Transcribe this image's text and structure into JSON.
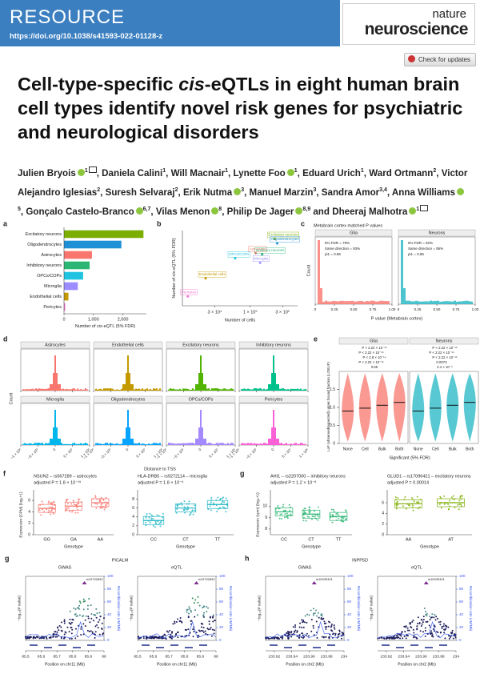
{
  "header": {
    "section": "RESOURCE",
    "doi": "https://doi.org/10.1038/s41593-022-01128-z",
    "journal": [
      "nature",
      "neuroscience"
    ],
    "updates": "Check for updates"
  },
  "title": [
    "Cell-type-specific ",
    "cis",
    "-eQTLs in eight human brain cell types identify novel risk genes for psychiatric and neurological disorders"
  ],
  "authors": [
    {
      "name": "Julien Bryois",
      "sup": "1",
      "orcid": true,
      "corresponding": true
    },
    {
      "name": "Daniela Calini",
      "sup": "1",
      "orcid": false,
      "corresponding": false
    },
    {
      "name": "Will Macnair",
      "sup": "1",
      "orcid": false,
      "corresponding": false
    },
    {
      "name": "Lynette Foo",
      "sup": "1",
      "orcid": true,
      "corresponding": false
    },
    {
      "name": "Eduard Urich",
      "sup": "1",
      "orcid": false,
      "corresponding": false
    },
    {
      "name": "Ward Ortmann",
      "sup": "2",
      "orcid": false,
      "corresponding": false
    },
    {
      "name": "Victor Alejandro Iglesias",
      "sup": "2",
      "orcid": false,
      "corresponding": false
    },
    {
      "name": "Suresh Selvaraj",
      "sup": "2",
      "orcid": false,
      "corresponding": false
    },
    {
      "name": "Erik Nutma",
      "sup": "3",
      "orcid": true,
      "corresponding": false
    },
    {
      "name": "Manuel Marzin",
      "sup": "3",
      "orcid": false,
      "corresponding": false
    },
    {
      "name": "Sandra Amor",
      "sup": "3,4",
      "orcid": false,
      "corresponding": false
    },
    {
      "name": "Anna Williams",
      "sup": "5",
      "orcid": true,
      "corresponding": false
    },
    {
      "name": "Gonçalo Castelo-Branco",
      "sup": "6,7",
      "orcid": true,
      "corresponding": false
    },
    {
      "name": "Vilas Menon",
      "sup": "8",
      "orcid": true,
      "corresponding": false
    },
    {
      "name": "Philip De Jager",
      "sup": "8,9",
      "orcid": true,
      "corresponding": false
    },
    {
      "name": "Dheeraj Malhotra",
      "sup": "1",
      "orcid": true,
      "corresponding": true
    }
  ],
  "figure": {
    "a": {
      "label": "a",
      "type": "bar",
      "categories": [
        "Excitatory neurons",
        "Oligodendrocytes",
        "Astrocytes",
        "Inhibitory neurons",
        "OPCs/COPs",
        "Microglia",
        "Endothelial cells",
        "Pericytes"
      ],
      "values": [
        2700,
        1950,
        950,
        870,
        650,
        470,
        150,
        40
      ],
      "colors": [
        "#7cae00",
        "#1f8fd6",
        "#f8766d",
        "#2bb673",
        "#20c4e0",
        "#9b8cff",
        "#c49a00",
        "#f472d0"
      ],
      "xlim": [
        0,
        2800
      ],
      "xticks": [
        0,
        {
          "value": 1000,
          "label": "1,000"
        },
        {
          "value": 2000,
          "label": "2,000"
        }
      ],
      "xlabel": [
        "Number of ",
        "cis",
        "-eQTL (5% FDR)"
      ]
    },
    "b": {
      "label": "b",
      "type": "scatter",
      "names": [
        "Excitatory neurons",
        "Oligodendrocytes",
        "Astrocytes",
        "Inhibitory neurons",
        "OPCs/COPs",
        "Microglia",
        "Endothelial cells",
        "Pericytes"
      ],
      "x": [
        230000,
        250000,
        120000,
        150000,
        60000,
        140000,
        22000,
        12000
      ],
      "y": [
        2700,
        1950,
        950,
        870,
        650,
        470,
        150,
        40
      ],
      "colors": [
        "#7cae00",
        "#1f8fd6",
        "#f8766d",
        "#2bb673",
        "#20c4e0",
        "#9b8cff",
        "#c49a00",
        "#f472d0"
      ],
      "log": true,
      "xlim": [
        10000,
        500000
      ],
      "ylim": [
        20,
        5000
      ],
      "xticks": [
        {
          "value": 30000,
          "label": "3 × 10⁴"
        },
        {
          "value": 100000,
          "label": "1 × 10⁵"
        },
        {
          "value": 300000,
          "label": "3 × 10⁵"
        }
      ],
      "xlabel": "Number of cells",
      "ylabel": [
        "Number of ",
        "cis",
        "-eQTL (5% FDR)"
      ]
    },
    "c": {
      "label": "c",
      "title": "Metabrain cortex matched P values",
      "facets": [
        {
          "name": "Glia",
          "color": "#f8766d",
          "stats": [
            "5% FDR = 79%",
            "Same direction = 93%",
            "pi1 = 0.86"
          ]
        },
        {
          "name": "Neurons",
          "color": "#20b5c4",
          "stats": [
            "5% FDR = 82%",
            "Same direction = 95%",
            "pi1 = 0.86"
          ]
        }
      ],
      "xlim": [
        0,
        1
      ],
      "xticks": [
        0,
        0.25,
        {
          "value": 0.5,
          "label": "0.50"
        },
        0.75,
        {
          "value": 1,
          "label": "1.00"
        }
      ],
      "ylabel": "Count",
      "xlabel": "P value (Metabrain cortex)"
    },
    "d": {
      "label": "d",
      "panels": [
        {
          "name": "Astrocytes",
          "color": "#f8766d"
        },
        {
          "name": "Endothelial cells",
          "color": "#c49a00"
        },
        {
          "name": "Excitatory neurons",
          "color": "#53b400"
        },
        {
          "name": "Inhibitory neurons",
          "color": "#00c08b"
        },
        {
          "name": "Microglia",
          "color": "#00b6eb"
        },
        {
          "name": "Oligodendrocytes",
          "color": "#06a4ff"
        },
        {
          "name": "OPCs/COPs",
          "color": "#a58aff"
        },
        {
          "name": "Pericytes",
          "color": "#fb61d7"
        }
      ],
      "xlim": [
        -1000000,
        1000000
      ],
      "xticks": [
        {
          "value": -1000000,
          "label": "−1 × 10⁶"
        },
        {
          "value": -500000,
          "label": "−5 × 10⁵"
        },
        0,
        {
          "value": 500000,
          "label": "5 × 10⁵"
        },
        {
          "value": 1000000,
          "label": "1 × 10⁶"
        }
      ],
      "ylabel": "Count",
      "xlabel": "Distance to TSS"
    },
    "e": {
      "label": "e",
      "facets": [
        "Glia",
        "Neurons"
      ],
      "colors": [
        "#f8766d",
        "#20b5c4"
      ],
      "categories": [
        "None",
        "Cell",
        "Bulk",
        "Both"
      ],
      "pvals": [
        [
          "P < 2.22 × 10⁻¹⁶",
          "P < 2.22 × 10⁻¹⁶",
          "P < 2.8 × 10⁻¹⁴",
          "P < 2.22 × 10⁻¹⁶",
          "0.65"
        ],
        [
          "P < 2.22 × 10⁻¹⁶",
          "P < 2.22 × 10⁻¹⁶",
          "P < 2.22 × 10⁻¹⁶",
          "0.0073",
          "2.4 × 10⁻⁶"
        ]
      ],
      "ylim": [
        0,
        2
      ],
      "yticks": [
        0,
        0.5,
        {
          "value": 1,
          "label": "1.0"
        },
        1.5
      ],
      "ylabel": "LoF (observed/expected) upper bound fraction (LOEUF)",
      "xlabel": "Significant (5% FDR)"
    },
    "boxes": [
      {
        "label": "f",
        "gene": "NSUN2 – rs567289 – astrocytes",
        "p": "adjusted P = 1.8 × 10⁻¹⁹",
        "genotypes": [
          "GG",
          "GA",
          "AA"
        ],
        "medians": [
          4.6,
          5.0,
          5.6
        ],
        "color": "#f8766d",
        "ylim": [
          0,
          7
        ],
        "yticks": [
          0,
          2,
          4,
          6
        ],
        "ylabel": "Expression (CPM) (log₂+1)",
        "xlabel": "Genotype"
      },
      {
        "gene": "HLA-DRB5 – rs9272114 – microglia",
        "p": "adjusted P = 1.8 × 10⁻⁹",
        "genotypes": [
          "CC",
          "CT",
          "TT"
        ],
        "medians": [
          3.2,
          6.0,
          6.8
        ],
        "color": "#20b5c4",
        "ylim": [
          0,
          9
        ],
        "yticks": [
          0,
          2,
          4,
          6,
          8
        ],
        "xlabel": "Genotype"
      },
      {
        "label": "g",
        "gene": "AHI1 – rs2207000 – inhibitory neurons",
        "p": "adjusted P = 1.2 × 10⁻⁸",
        "genotypes": [
          "CC",
          "CT",
          "TT"
        ],
        "medians": [
          9.5,
          9.3,
          9.1
        ],
        "color": "#2bb673",
        "ylim": [
          7.5,
          11
        ],
        "yticks": [
          8,
          9,
          10
        ],
        "ylabel": "Expression (cpm) (log₂+1)",
        "xlabel": "Genotype"
      },
      {
        "gene": "GLUD1 – rs17096421 – excitatory neurons",
        "p": "adjusted P = 0.00014",
        "genotypes": [
          "AA",
          "AT"
        ],
        "medians": [
          5.8,
          6.0
        ],
        "color": "#7cae00",
        "ylim": [
          0,
          7.5
        ],
        "yticks": [
          0,
          2,
          4,
          6
        ],
        "xlabel": "Genotype"
      }
    ],
    "locus": [
      {
        "label": "g",
        "gene": "PICALM",
        "plots": [
          "GWAS",
          "eQTL"
        ],
        "lead": "rs10792832",
        "xlim": [
          85.5,
          86
        ],
        "xticks": [
          85.5,
          85.6,
          85.7,
          85.8,
          85.9,
          86
        ],
        "xlabel": "Position on chr11 (Mb)",
        "ylabel": "−log₁₀(P value)",
        "y2label": "Recombination rate (cM/Mb)",
        "y2lim": [
          0,
          100
        ],
        "y2ticks": [
          0,
          20,
          40,
          60,
          80,
          100
        ]
      },
      {
        "label": "h",
        "gene": "INPP5D",
        "plots": [
          "GWAS",
          "eQTL"
        ],
        "lead": "rs10933431",
        "xlim": [
          233.91,
          234
        ],
        "xticks": [
          233.92,
          233.94,
          233.96,
          233.98,
          234
        ],
        "xlabel": "Position on chr2 (Mb)",
        "ylabel": "−log₁₀(P value)",
        "y2label": "Recombination rate (cM/Mb)",
        "y2lim": [
          0,
          100
        ],
        "y2ticks": [
          0,
          20,
          40,
          60,
          80,
          100
        ]
      }
    ]
  }
}
